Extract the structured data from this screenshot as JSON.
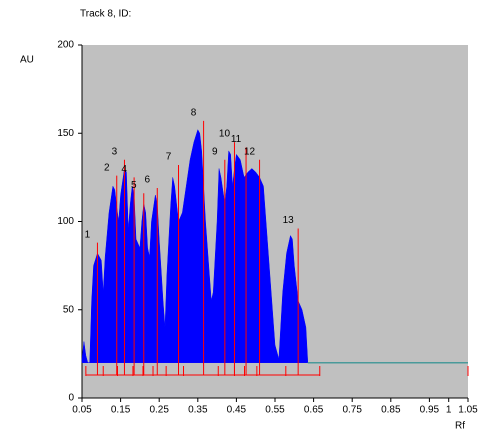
{
  "chart_data": {
    "type": "area",
    "title": "Track 8, ID:",
    "y_label": "AU",
    "x_label": "Rf",
    "color": "#0000ff",
    "baseline": 20,
    "baseline_color": "#4a9a9a",
    "marker_color": "#ff0000",
    "x": [
      0.05,
      0.055,
      0.06,
      0.065,
      0.07,
      0.075,
      0.08,
      0.09,
      0.1,
      0.105,
      0.11,
      0.12,
      0.13,
      0.135,
      0.14,
      0.145,
      0.15,
      0.16,
      0.165,
      0.17,
      0.175,
      0.18,
      0.185,
      0.19,
      0.2,
      0.205,
      0.21,
      0.215,
      0.22,
      0.225,
      0.23,
      0.24,
      0.245,
      0.25,
      0.26,
      0.265,
      0.27,
      0.28,
      0.285,
      0.29,
      0.3,
      0.31,
      0.32,
      0.33,
      0.34,
      0.35,
      0.355,
      0.36,
      0.37,
      0.38,
      0.385,
      0.39,
      0.4,
      0.405,
      0.41,
      0.42,
      0.425,
      0.43,
      0.435,
      0.44,
      0.445,
      0.45,
      0.46,
      0.47,
      0.48,
      0.49,
      0.5,
      0.51,
      0.52,
      0.53,
      0.54,
      0.55,
      0.56,
      0.57,
      0.58,
      0.59,
      0.595,
      0.6,
      0.61,
      0.62,
      0.63,
      0.635
    ],
    "values": [
      22,
      32,
      24,
      20,
      20,
      55,
      75,
      82,
      78,
      60,
      80,
      105,
      120,
      118,
      108,
      100,
      115,
      130,
      128,
      95,
      110,
      120,
      115,
      90,
      85,
      100,
      110,
      105,
      85,
      80,
      100,
      115,
      110,
      90,
      55,
      40,
      70,
      110,
      125,
      120,
      100,
      105,
      120,
      135,
      145,
      152,
      150,
      140,
      100,
      70,
      55,
      60,
      100,
      130,
      125,
      110,
      120,
      140,
      138,
      120,
      130,
      138,
      135,
      125,
      128,
      130,
      128,
      125,
      120,
      90,
      60,
      30,
      22,
      60,
      82,
      92,
      90,
      75,
      55,
      50,
      40,
      20
    ],
    "peaks": [
      {
        "label": "1",
        "x": 0.09,
        "value": 88
      },
      {
        "label": "2",
        "x": 0.14,
        "value": 126
      },
      {
        "label": "3",
        "x": 0.16,
        "value": 135
      },
      {
        "label": "4",
        "x": 0.185,
        "value": 125
      },
      {
        "label": "5",
        "x": 0.21,
        "value": 116
      },
      {
        "label": "6",
        "x": 0.245,
        "value": 119
      },
      {
        "label": "7",
        "x": 0.3,
        "value": 132
      },
      {
        "label": "8",
        "x": 0.365,
        "value": 157
      },
      {
        "label": "9",
        "x": 0.42,
        "value": 135
      },
      {
        "label": "10",
        "x": 0.445,
        "value": 145
      },
      {
        "label": "11",
        "x": 0.475,
        "value": 142
      },
      {
        "label": "12",
        "x": 0.51,
        "value": 135
      },
      {
        "label": "13",
        "x": 0.61,
        "value": 96
      }
    ],
    "boundaries": [
      0.06,
      0.105,
      0.142,
      0.182,
      0.208,
      0.234,
      0.268,
      0.313,
      0.403,
      0.445,
      0.471,
      0.503,
      0.578,
      0.666,
      1.05
    ],
    "xlim": [
      0.05,
      1.05
    ],
    "ylim": [
      0,
      200
    ],
    "xticks": [
      0.05,
      0.15,
      0.25,
      0.35,
      0.45,
      0.55,
      0.65,
      0.75,
      0.85,
      0.95,
      {
        "value": 1.0,
        "label": "1"
      },
      1.05
    ],
    "yticks": [
      0,
      50,
      100,
      150,
      200
    ]
  }
}
